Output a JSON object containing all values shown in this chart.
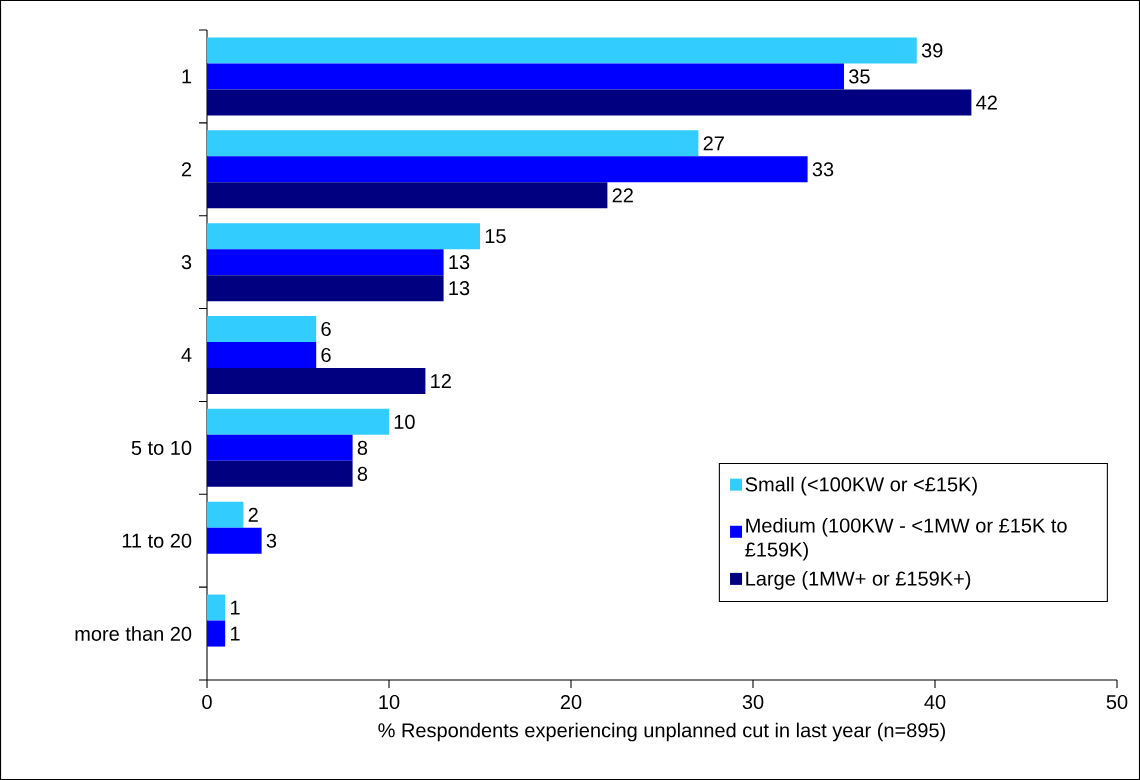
{
  "chart_data": {
    "type": "bar",
    "orientation": "horizontal",
    "xlabel": "% Respondents experiencing unplanned cut in last year (n=895)",
    "categories": [
      "1",
      "2",
      "3",
      "4",
      "5 to 10",
      "11 to 20",
      "more than 20"
    ],
    "series": [
      {
        "name": "Small (<100KW or <£15K)",
        "color": "#33ccff",
        "values": [
          39,
          27,
          15,
          6,
          10,
          2,
          1
        ]
      },
      {
        "name": "Medium (100KW - <1MW or £15K to £159K)",
        "color": "#0000ff",
        "values": [
          35,
          33,
          13,
          6,
          8,
          3,
          1
        ]
      },
      {
        "name": "Large (1MW+ or £159K+)",
        "color": "#000080",
        "values": [
          42,
          22,
          13,
          12,
          8,
          null,
          null
        ]
      }
    ],
    "xlim": [
      0,
      50
    ],
    "xticks": [
      0,
      10,
      20,
      30,
      40,
      50
    ],
    "data_labels": true,
    "legend": "bottom right",
    "grid": false
  }
}
